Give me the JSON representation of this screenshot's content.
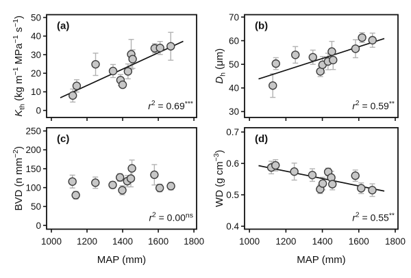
{
  "figure": {
    "background": "#ffffff",
    "axis_color": "#111111",
    "text_color": "#111111",
    "marker_fill": "#c7c7c7",
    "marker_stroke": "#3d3d3d",
    "errorbar_color": "#b2b2b2",
    "trend_color": "#111111",
    "xlabel": "MAP (mm)"
  },
  "chart_data": [
    {
      "type": "scatter",
      "panel": "(a)",
      "ylabel_segments": [
        [
          "K",
          "i"
        ],
        [
          "th",
          "sub"
        ],
        [
          " (kg m",
          "n"
        ],
        [
          "−1",
          "sup"
        ],
        [
          " MPa",
          "n"
        ],
        [
          "−1",
          "sup"
        ],
        [
          " s",
          "n"
        ],
        [
          "−1",
          "sup"
        ],
        [
          ")",
          "n"
        ]
      ],
      "xlabel": null,
      "x_ticks": [
        1000,
        1200,
        1400,
        1600,
        1800
      ],
      "y_ticks": [
        0,
        10,
        20,
        30,
        40,
        50
      ],
      "x_domain": [
        973,
        1815
      ],
      "y_domain": [
        -3.8,
        51.5
      ],
      "show_x_labels": false,
      "r2": "0.69",
      "significance": "***",
      "trend": {
        "x1": 1050,
        "y1": 6.8,
        "x2": 1740,
        "y2": 37.2
      },
      "points": [
        {
          "x": 1120,
          "y": 8.0,
          "e": 3.5
        },
        {
          "x": 1142,
          "y": 13.2,
          "e": 3.3
        },
        {
          "x": 1248,
          "y": 24.8,
          "e": 6.0
        },
        {
          "x": 1346,
          "y": 21.2,
          "e": 3.5
        },
        {
          "x": 1388,
          "y": 16.3,
          "e": 3.0
        },
        {
          "x": 1400,
          "y": 13.8,
          "e": 1.5
        },
        {
          "x": 1430,
          "y": 21.0,
          "e": 4.0
        },
        {
          "x": 1448,
          "y": 30.2,
          "e": 8.0
        },
        {
          "x": 1456,
          "y": 27.6,
          "e": 5.0
        },
        {
          "x": 1580,
          "y": 33.4,
          "e": 2.5
        },
        {
          "x": 1610,
          "y": 33.6,
          "e": 3.5
        },
        {
          "x": 1670,
          "y": 34.5,
          "e": 7.5
        }
      ]
    },
    {
      "type": "scatter",
      "panel": "(b)",
      "ylabel_segments": [
        [
          "D",
          "i"
        ],
        [
          "h",
          "sub"
        ],
        [
          " (μm)",
          "n"
        ]
      ],
      "xlabel": null,
      "x_ticks": [
        1000,
        1200,
        1400,
        1600,
        1800
      ],
      "y_ticks": [
        30,
        40,
        50,
        60,
        70
      ],
      "x_domain": [
        973,
        1815
      ],
      "y_domain": [
        27.5,
        71.0
      ],
      "show_x_labels": false,
      "r2": "0.59",
      "significance": "**",
      "trend": {
        "x1": 1050,
        "y1": 43.8,
        "x2": 1740,
        "y2": 60.9
      },
      "points": [
        {
          "x": 1128,
          "y": 41.0,
          "e": 5.0
        },
        {
          "x": 1145,
          "y": 50.3,
          "e": 2.5
        },
        {
          "x": 1252,
          "y": 54.0,
          "e": 3.5
        },
        {
          "x": 1348,
          "y": 53.0,
          "e": 3.0
        },
        {
          "x": 1389,
          "y": 47.0,
          "e": 2.2
        },
        {
          "x": 1401,
          "y": 49.8,
          "e": 3.5
        },
        {
          "x": 1431,
          "y": 51.2,
          "e": 3.5
        },
        {
          "x": 1452,
          "y": 55.4,
          "e": 4.3
        },
        {
          "x": 1459,
          "y": 51.8,
          "e": 4.0
        },
        {
          "x": 1582,
          "y": 56.6,
          "e": 3.8
        },
        {
          "x": 1618,
          "y": 61.3,
          "e": 2.1
        },
        {
          "x": 1675,
          "y": 60.2,
          "e": 3.0
        }
      ]
    },
    {
      "type": "scatter",
      "panel": "(c)",
      "ylabel_segments": [
        [
          "BVD (n mm",
          "n"
        ],
        [
          "−2",
          "sup"
        ],
        [
          ")",
          "n"
        ]
      ],
      "xlabel": "MAP (mm)",
      "x_ticks": [
        1000,
        1200,
        1400,
        1600,
        1800
      ],
      "y_ticks": [
        0,
        50,
        100,
        150,
        200,
        250
      ],
      "x_domain": [
        973,
        1815
      ],
      "y_domain": [
        -10,
        258.5
      ],
      "show_x_labels": true,
      "r2": "0.00",
      "significance": "ns",
      "trend": null,
      "points": [
        {
          "x": 1118,
          "y": 116,
          "e": 17
        },
        {
          "x": 1137,
          "y": 80,
          "e": 10
        },
        {
          "x": 1247,
          "y": 113,
          "e": 15
        },
        {
          "x": 1344,
          "y": 107,
          "e": 9
        },
        {
          "x": 1385,
          "y": 127,
          "e": 10
        },
        {
          "x": 1398,
          "y": 93,
          "e": 12
        },
        {
          "x": 1426,
          "y": 117,
          "e": 15
        },
        {
          "x": 1446,
          "y": 124,
          "e": 22
        },
        {
          "x": 1452,
          "y": 151,
          "e": 22
        },
        {
          "x": 1578,
          "y": 134,
          "e": 27
        },
        {
          "x": 1608,
          "y": 99,
          "e": 10
        },
        {
          "x": 1671,
          "y": 104,
          "e": 10
        }
      ]
    },
    {
      "type": "scatter",
      "panel": "(d)",
      "ylabel_segments": [
        [
          "WD (g cm",
          "n"
        ],
        [
          "−3",
          "sup"
        ],
        [
          ")",
          "n"
        ]
      ],
      "xlabel": "MAP (mm)",
      "x_ticks": [
        1000,
        1200,
        1400,
        1600,
        1800
      ],
      "y_ticks": [
        0.4,
        0.5,
        0.6,
        0.7
      ],
      "x_domain": [
        973,
        1815
      ],
      "y_domain": [
        0.3907,
        0.7137
      ],
      "show_x_labels": true,
      "r2": "0.55",
      "significance": "**",
      "trend": {
        "x1": 1050,
        "y1": 0.593,
        "x2": 1740,
        "y2": 0.512
      },
      "points": [
        {
          "x": 1120,
          "y": 0.587,
          "e": 0.02
        },
        {
          "x": 1143,
          "y": 0.594,
          "e": 0.018
        },
        {
          "x": 1246,
          "y": 0.574,
          "e": 0.027
        },
        {
          "x": 1345,
          "y": 0.563,
          "e": 0.02
        },
        {
          "x": 1388,
          "y": 0.518,
          "e": 0.014
        },
        {
          "x": 1402,
          "y": 0.536,
          "e": 0.02
        },
        {
          "x": 1432,
          "y": 0.573,
          "e": 0.012
        },
        {
          "x": 1449,
          "y": 0.555,
          "e": 0.02
        },
        {
          "x": 1455,
          "y": 0.534,
          "e": 0.018
        },
        {
          "x": 1581,
          "y": 0.561,
          "e": 0.018
        },
        {
          "x": 1613,
          "y": 0.521,
          "e": 0.017
        },
        {
          "x": 1674,
          "y": 0.515,
          "e": 0.02
        }
      ]
    }
  ]
}
